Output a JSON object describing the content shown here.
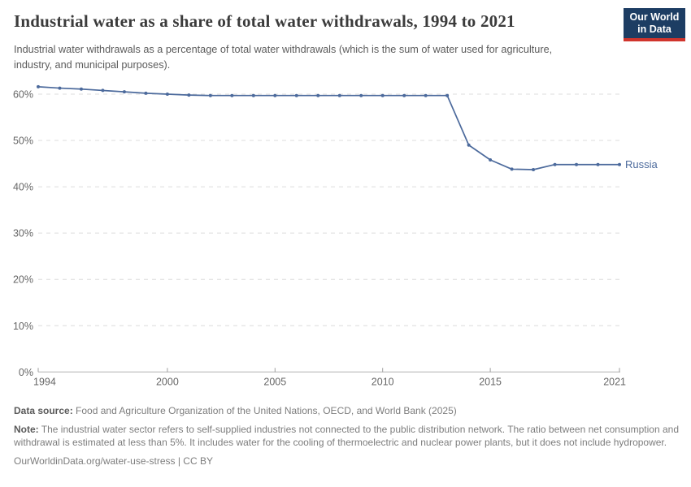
{
  "header": {
    "title": "Industrial water as a share of total water withdrawals, 1994 to 2021",
    "subtitle": "Industrial water withdrawals as a percentage of total water withdrawals (which is the sum of water used for agriculture, industry, and municipal purposes).",
    "logo": {
      "line1": "Our World",
      "line2": "in Data",
      "bg_color": "#1d3d63",
      "stripe_color": "#d0342c"
    }
  },
  "chart_data": {
    "type": "line",
    "title": "Industrial water as a share of total water withdrawals, 1994 to 2021",
    "xlabel": "",
    "ylabel": "",
    "xlim": [
      1994,
      2021
    ],
    "ylim": [
      0,
      63.5
    ],
    "x_ticks": [
      1994,
      2000,
      2005,
      2010,
      2015,
      2021
    ],
    "y_ticks": [
      0,
      10,
      20,
      30,
      40,
      50,
      60
    ],
    "y_tick_suffix": "%",
    "grid": "dashed-horizontal",
    "legend_position": "end-of-line-label",
    "line_color": "#4C6A9C",
    "series": [
      {
        "name": "Russia",
        "x": [
          1994,
          1995,
          1996,
          1997,
          1998,
          1999,
          2000,
          2001,
          2002,
          2003,
          2004,
          2005,
          2006,
          2007,
          2008,
          2009,
          2010,
          2011,
          2012,
          2013,
          2014,
          2015,
          2016,
          2017,
          2018,
          2019,
          2020,
          2021
        ],
        "values": [
          61.6,
          61.3,
          61.1,
          60.8,
          60.5,
          60.2,
          60.0,
          59.8,
          59.7,
          59.7,
          59.7,
          59.7,
          59.7,
          59.7,
          59.7,
          59.7,
          59.7,
          59.7,
          59.7,
          59.7,
          49.0,
          45.8,
          43.8,
          43.7,
          44.8,
          44.8,
          44.8,
          44.8
        ]
      }
    ]
  },
  "footer": {
    "source_label": "Data source:",
    "source_text": "Food and Agriculture Organization of the United Nations, OECD, and World Bank (2025)",
    "note_label": "Note:",
    "note_text": "The industrial water sector refers to self-supplied industries not connected to the public distribution network. The ratio between net consumption and withdrawal is estimated at less than 5%. It includes water for the cooling of thermoelectric and nuclear power plants, but it does not include hydropower.",
    "url_text": "OurWorldinData.org/water-use-stress | CC BY"
  }
}
